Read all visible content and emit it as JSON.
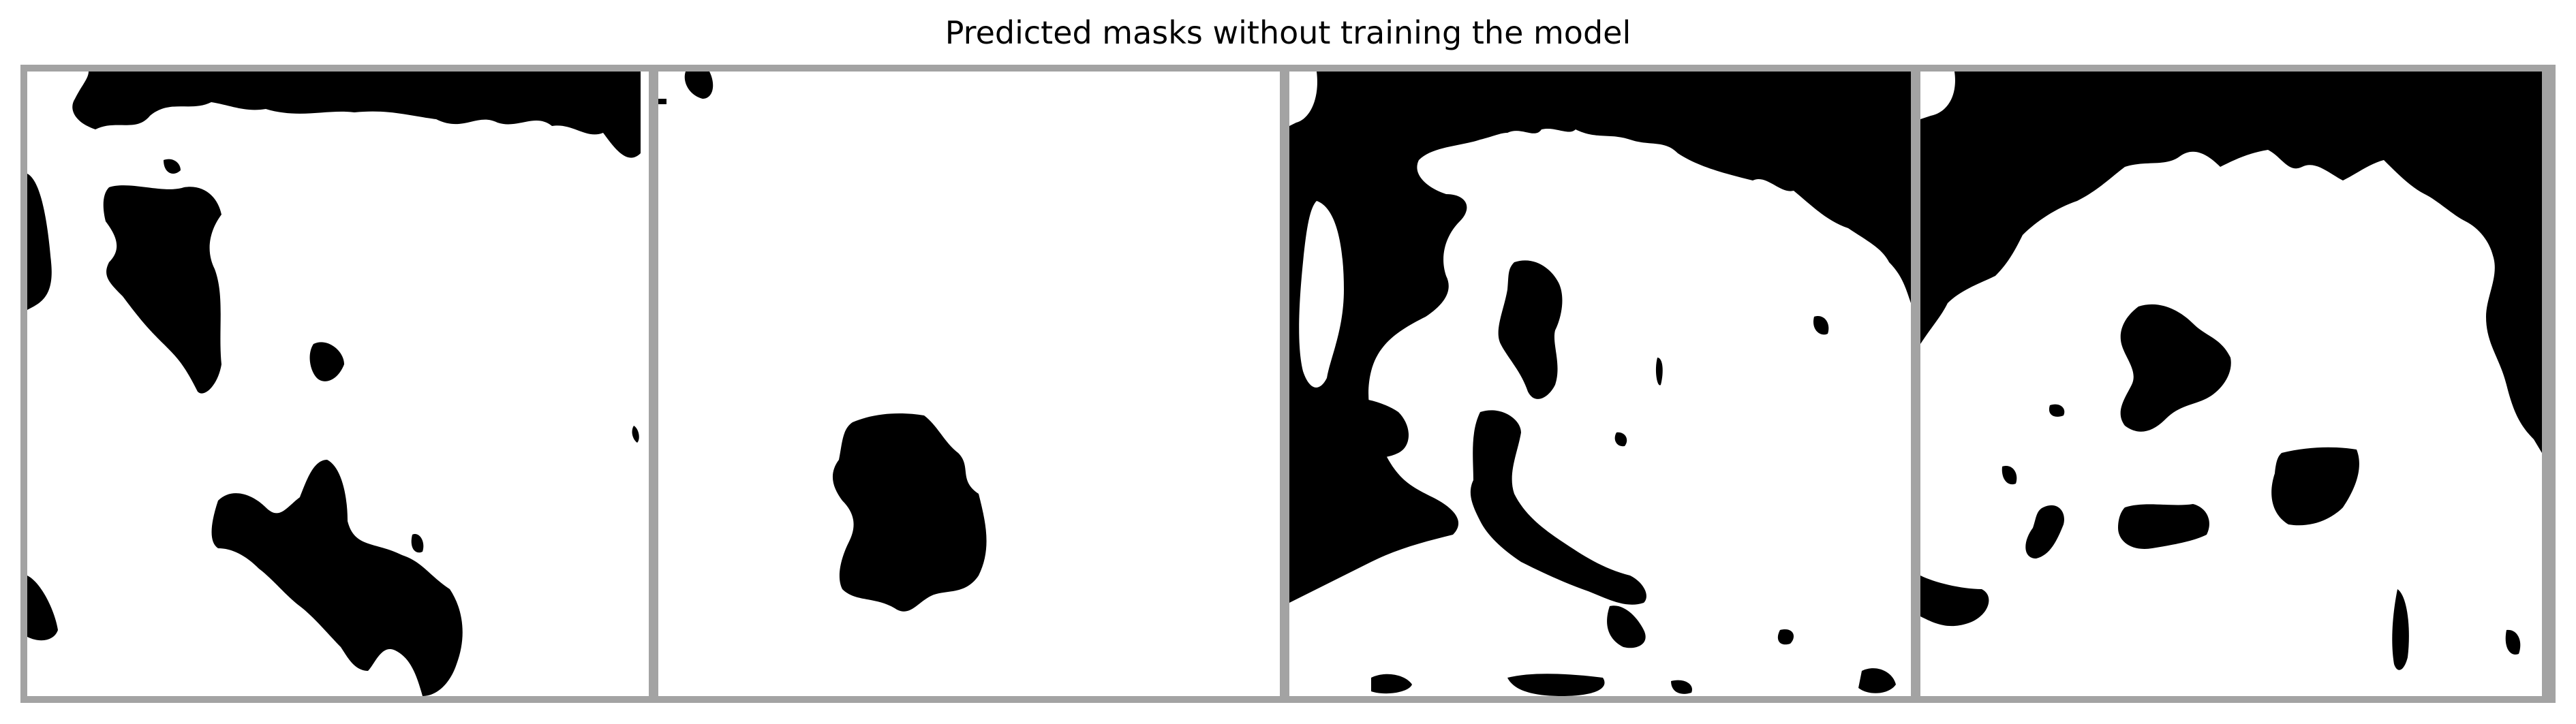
{
  "figure": {
    "title": "Predicted masks without training the model",
    "panels": [
      {
        "id": 1,
        "content": "binary-mask"
      },
      {
        "id": 2,
        "content": "binary-mask"
      },
      {
        "id": 3,
        "content": "binary-mask"
      },
      {
        "id": 4,
        "content": "binary-mask"
      }
    ]
  },
  "colors": {
    "mask_foreground": "#000000",
    "mask_background": "#ffffff",
    "border": "#a3a3a3"
  }
}
